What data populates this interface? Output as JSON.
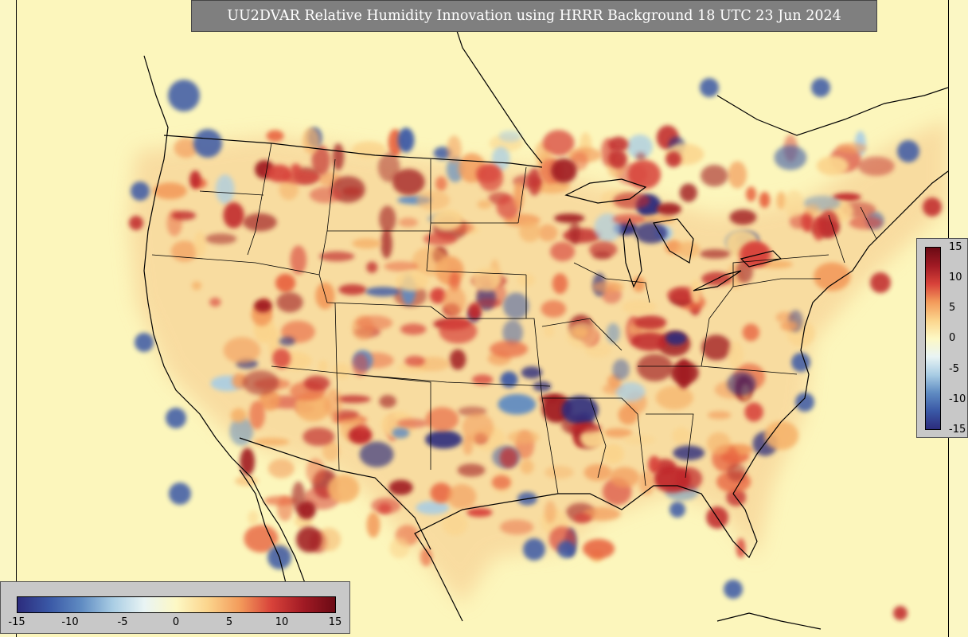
{
  "title": "UU2DVAR Relative Humidity Innovation using HRRR Background 18 UTC 23 Jun 2024",
  "colorbar": {
    "min": -15,
    "max": 15,
    "vertical_ticks": [
      "15",
      "10",
      "5",
      "0",
      "-5",
      "-10",
      "-15"
    ],
    "horizontal_ticks": [
      "-15",
      "-10",
      "-5",
      "0",
      "5",
      "10",
      "15"
    ],
    "colors": [
      "#2c2c7d",
      "#3a58a6",
      "#5f8bc2",
      "#a9cde4",
      "#e9f4f4",
      "#fdf8c4",
      "#fbd48c",
      "#f39b5b",
      "#d8423a",
      "#a11a24",
      "#6b0a14"
    ]
  },
  "map": {
    "background_color": "#fcf6bc",
    "line_color": "#000000"
  }
}
